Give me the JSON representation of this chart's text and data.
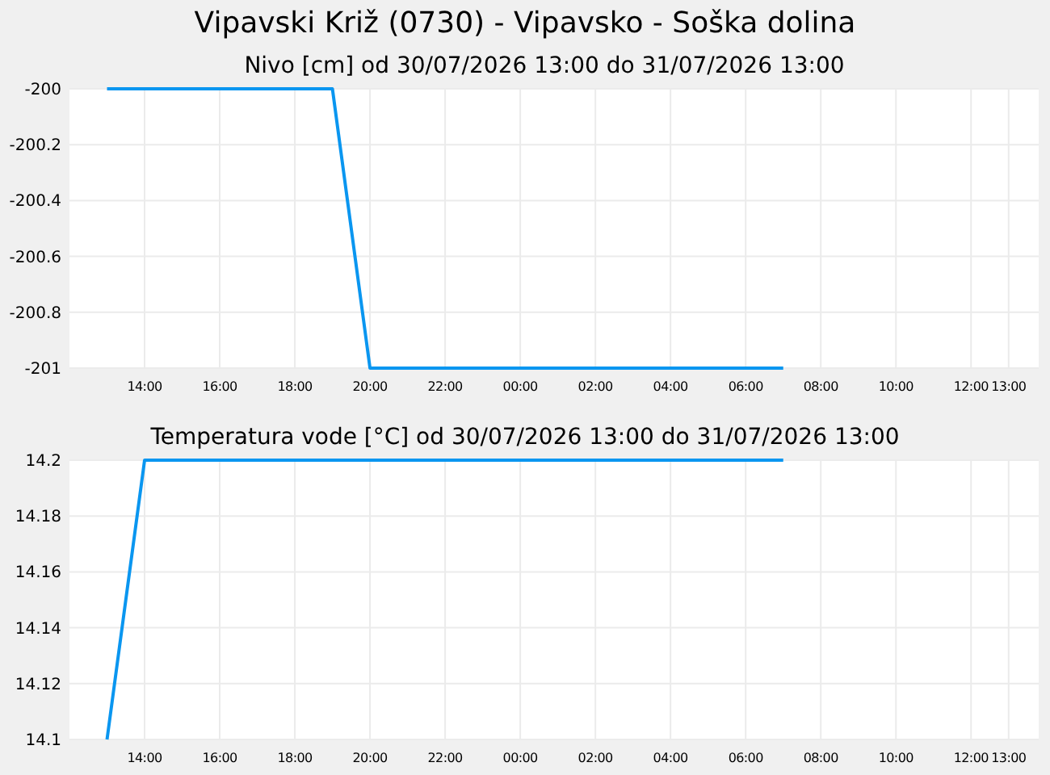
{
  "chart_data": [
    {
      "type": "line",
      "title": "Vipavski Križ (0730) - Vipavsko - Soška dolina",
      "subtitle": "Nivo [cm] od 30/07/2026 13:00 do 31/07/2026 13:00",
      "x": [
        "2026-07-30T13:00",
        "2026-07-30T19:00",
        "2026-07-30T20:00",
        "2026-07-31T07:00"
      ],
      "series": [
        {
          "color": "#0a96f0",
          "values": [
            -200,
            -200,
            -201,
            -201
          ]
        }
      ],
      "xlim": [
        "2026-07-30T12:00",
        "2026-07-31T13:48"
      ],
      "xticks": [
        {
          "value": "2026-07-30T14:00",
          "label": "14:00"
        },
        {
          "value": "2026-07-30T16:00",
          "label": "16:00"
        },
        {
          "value": "2026-07-30T18:00",
          "label": "18:00"
        },
        {
          "value": "2026-07-30T20:00",
          "label": "20:00"
        },
        {
          "value": "2026-07-30T22:00",
          "label": "22:00"
        },
        {
          "value": "2026-07-31T00:00",
          "label": "00:00"
        },
        {
          "value": "2026-07-31T02:00",
          "label": "02:00"
        },
        {
          "value": "2026-07-31T04:00",
          "label": "04:00"
        },
        {
          "value": "2026-07-31T06:00",
          "label": "06:00"
        },
        {
          "value": "2026-07-31T08:00",
          "label": "08:00"
        },
        {
          "value": "2026-07-31T10:00",
          "label": "10:00"
        },
        {
          "value": "2026-07-31T12:00",
          "label": "12:00"
        },
        {
          "value": "2026-07-31T13:00",
          "label": "13:00"
        }
      ],
      "ylim": [
        -201,
        -200
      ],
      "yticks": [
        -201,
        -200.8,
        -200.6,
        -200.4,
        -200.2,
        -200
      ],
      "grid": true,
      "marker": "none",
      "line_style": "solid"
    },
    {
      "type": "line",
      "title": "Temperatura vode [°C] od 30/07/2026 13:00 do 31/07/2026 13:00",
      "x": [
        "2026-07-30T13:00",
        "2026-07-30T14:00",
        "2026-07-31T07:00"
      ],
      "series": [
        {
          "color": "#0a96f0",
          "values": [
            14.1,
            14.2,
            14.2
          ]
        }
      ],
      "xlim": [
        "2026-07-30T12:00",
        "2026-07-31T13:48"
      ],
      "xticks": [
        {
          "value": "2026-07-30T14:00",
          "label": "14:00"
        },
        {
          "value": "2026-07-30T16:00",
          "label": "16:00"
        },
        {
          "value": "2026-07-30T18:00",
          "label": "18:00"
        },
        {
          "value": "2026-07-30T20:00",
          "label": "20:00"
        },
        {
          "value": "2026-07-30T22:00",
          "label": "22:00"
        },
        {
          "value": "2026-07-31T00:00",
          "label": "00:00"
        },
        {
          "value": "2026-07-31T02:00",
          "label": "02:00"
        },
        {
          "value": "2026-07-31T04:00",
          "label": "04:00"
        },
        {
          "value": "2026-07-31T06:00",
          "label": "06:00"
        },
        {
          "value": "2026-07-31T08:00",
          "label": "08:00"
        },
        {
          "value": "2026-07-31T10:00",
          "label": "10:00"
        },
        {
          "value": "2026-07-31T12:00",
          "label": "12:00"
        },
        {
          "value": "2026-07-31T13:00",
          "label": "13:00"
        }
      ],
      "ylim": [
        14.1,
        14.2
      ],
      "yticks": [
        14.1,
        14.12,
        14.14,
        14.16,
        14.18,
        14.2
      ],
      "grid": true,
      "marker": "none",
      "line_style": "solid"
    }
  ]
}
